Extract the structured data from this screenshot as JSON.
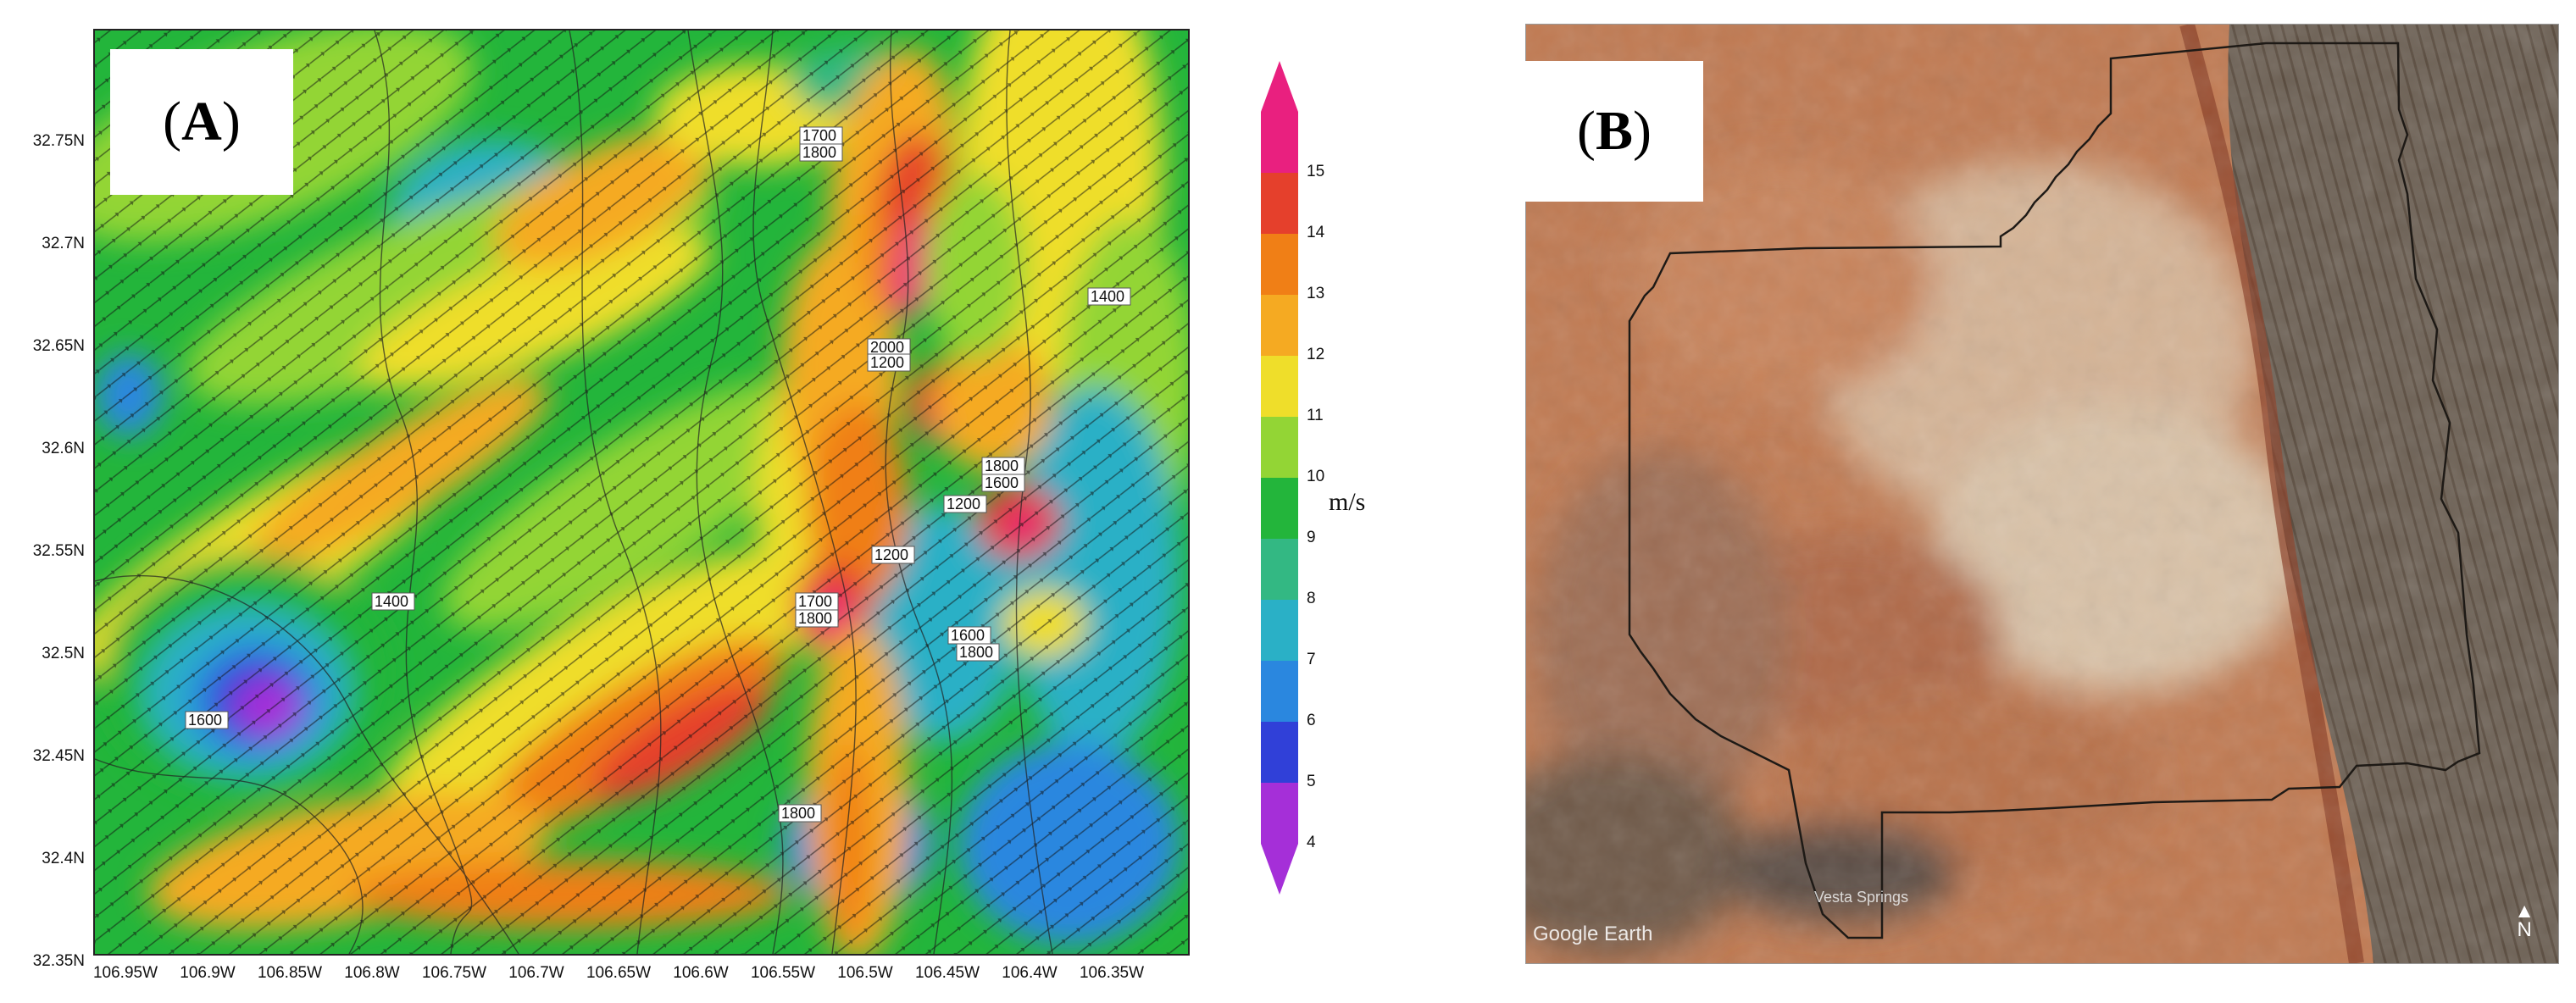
{
  "panel_a": {
    "label": "A",
    "unit": "m/s",
    "colorbar_ticks": [
      "15",
      "14",
      "13",
      "12",
      "11",
      "10",
      "9",
      "8",
      "7",
      "6",
      "5",
      "4"
    ],
    "y_ticks": [
      "32.75N",
      "32.7N",
      "32.65N",
      "32.6N",
      "32.55N",
      "32.5N",
      "32.45N",
      "32.4N",
      "32.35N"
    ],
    "x_ticks": [
      "106.95W",
      "106.9W",
      "106.85W",
      "106.8W",
      "106.75W",
      "106.7W",
      "106.65W",
      "106.6W",
      "106.55W",
      "106.5W",
      "106.45W",
      "106.4W",
      "106.35W"
    ],
    "contour_labels": [
      "1700",
      "1800",
      "2000",
      "1200",
      "1800",
      "1600",
      "1200",
      "1400",
      "1200",
      "1700",
      "1800",
      "1600",
      "1800",
      "1400",
      "1600",
      "1800"
    ],
    "colors": {
      "c15": "#e9207f",
      "c14": "#e5402c",
      "c13": "#f07f16",
      "c12": "#f5aa22",
      "c11": "#efde2a",
      "c10": "#93d535",
      "c9": "#23b53b",
      "c8": "#33b883",
      "c7": "#2ab0c6",
      "c6": "#2a87df",
      "c5": "#3040d8",
      "c4": "#a52fd8"
    }
  },
  "panel_b": {
    "label": "B",
    "attribution": "Google Earth",
    "place_label": "Vesta Springs",
    "north_label": "N",
    "boundary_color": "#1e1a16"
  }
}
